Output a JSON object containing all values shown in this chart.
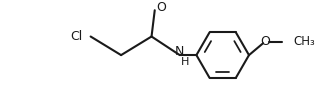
{
  "background": "#ffffff",
  "line_color": "#1a1a1a",
  "line_width": 1.5,
  "font_size": 9,
  "font_color": "#1a1a1a",
  "figsize": [
    3.3,
    1.08
  ],
  "dpi": 100,
  "xlim": [
    0,
    10
  ],
  "ylim": [
    0,
    3.3
  ]
}
